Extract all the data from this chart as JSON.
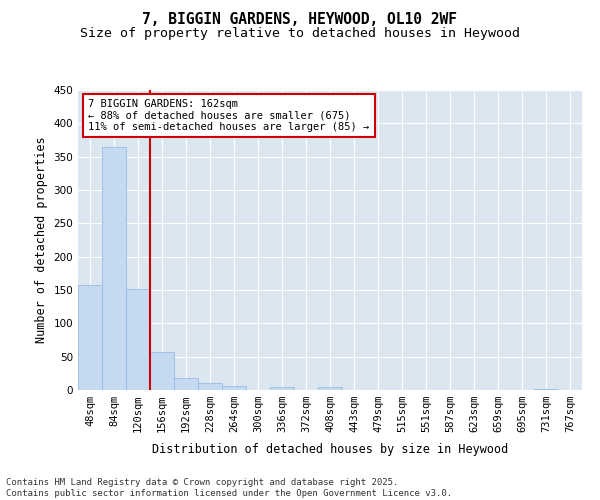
{
  "title": "7, BIGGIN GARDENS, HEYWOOD, OL10 2WF",
  "subtitle": "Size of property relative to detached houses in Heywood",
  "xlabel": "Distribution of detached houses by size in Heywood",
  "ylabel": "Number of detached properties",
  "bins": [
    "48sqm",
    "84sqm",
    "120sqm",
    "156sqm",
    "192sqm",
    "228sqm",
    "264sqm",
    "300sqm",
    "336sqm",
    "372sqm",
    "408sqm",
    "443sqm",
    "479sqm",
    "515sqm",
    "551sqm",
    "587sqm",
    "623sqm",
    "659sqm",
    "695sqm",
    "731sqm",
    "767sqm"
  ],
  "values": [
    157,
    365,
    152,
    57,
    18,
    11,
    6,
    0,
    5,
    0,
    5,
    0,
    0,
    0,
    0,
    0,
    0,
    0,
    0,
    2,
    0
  ],
  "bar_color": "#c5d9f1",
  "bar_edge_color": "#8db4e2",
  "vline_color": "#cc0000",
  "annotation_text": "7 BIGGIN GARDENS: 162sqm\n← 88% of detached houses are smaller (675)\n11% of semi-detached houses are larger (85) →",
  "annotation_box_color": "#ffffff",
  "annotation_box_edge": "#cc0000",
  "ylim": [
    0,
    450
  ],
  "yticks": [
    0,
    50,
    100,
    150,
    200,
    250,
    300,
    350,
    400,
    450
  ],
  "bg_color": "#dce6f1",
  "plot_bg_color": "#dce6f1",
  "footer": "Contains HM Land Registry data © Crown copyright and database right 2025.\nContains public sector information licensed under the Open Government Licence v3.0.",
  "title_fontsize": 10.5,
  "subtitle_fontsize": 9.5,
  "axis_label_fontsize": 8.5,
  "tick_fontsize": 7.5,
  "annotation_fontsize": 7.5,
  "footer_fontsize": 6.5
}
